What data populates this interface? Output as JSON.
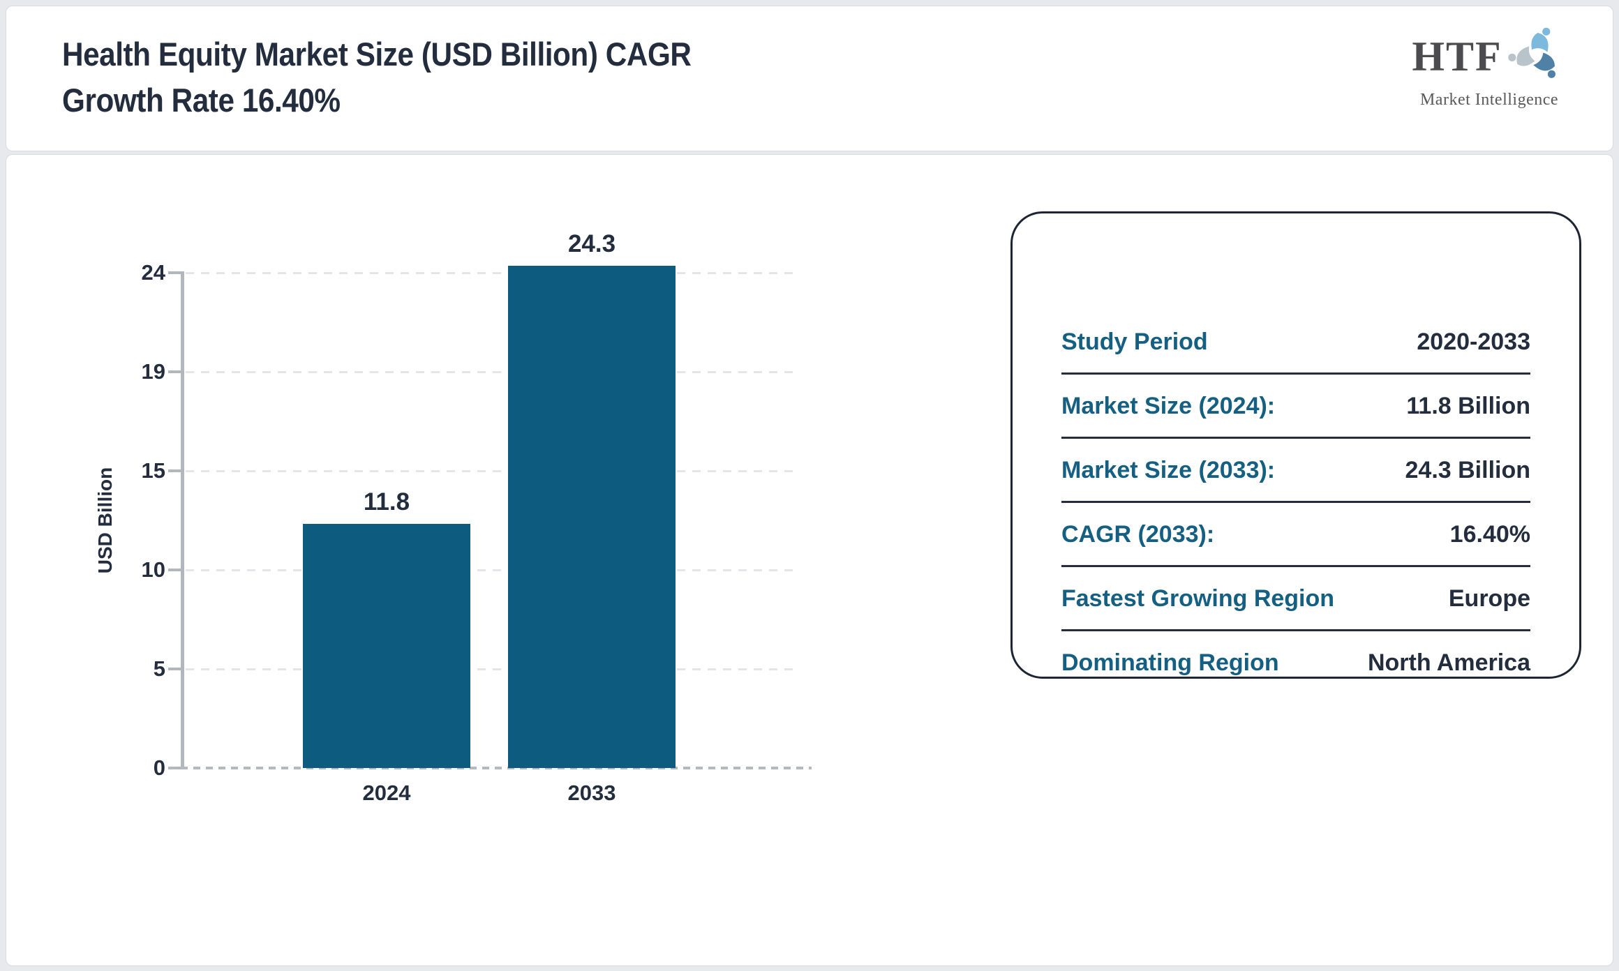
{
  "header": {
    "title_line1": "Health Equity Market Size (USD Billion) CAGR",
    "title_line2": "Growth Rate 16.40%"
  },
  "logo": {
    "text": "HTF",
    "subtext": "Market Intelligence",
    "icon": "people-swirl-icon"
  },
  "chart_data": {
    "type": "bar",
    "title": "Health Equity Market Size (USD Billion) CAGR Growth Rate 16.40%",
    "categories": [
      "2024",
      "2033"
    ],
    "values": [
      11.8,
      24.3
    ],
    "xlabel": "",
    "ylabel": "USD Billion",
    "yticks": [
      "24",
      "19",
      "15",
      "10",
      "5",
      "0"
    ],
    "ylim": [
      0,
      24.3
    ],
    "grid": "dashed horizontal gridlines, dotted baseline",
    "legend": "none",
    "bar_color": "#0e5b80"
  },
  "panel": {
    "rows": [
      {
        "label": "Study Period",
        "value": "2020-2033"
      },
      {
        "label": "Market Size (2024):",
        "value": "11.8 Billion"
      },
      {
        "label": "Market Size (2033):",
        "value": "24.3 Billion"
      },
      {
        "label": "CAGR (2033):",
        "value": "16.40%"
      },
      {
        "label": "Fastest Growing Region",
        "value": "Europe"
      },
      {
        "label": "Dominating Region",
        "value": "North America"
      }
    ]
  },
  "colors": {
    "bar": "#0e5b80",
    "panel_label": "#155f82",
    "text_navy": "#232d3d",
    "axis_gray": "#b2b6bd",
    "gridline": "#e4e5e8",
    "page_background": "#e8e9ed",
    "logo_blue_light": "#7cb9dd",
    "logo_blue_steel": "#4e81a5",
    "logo_gray": "#b9c3ca"
  }
}
